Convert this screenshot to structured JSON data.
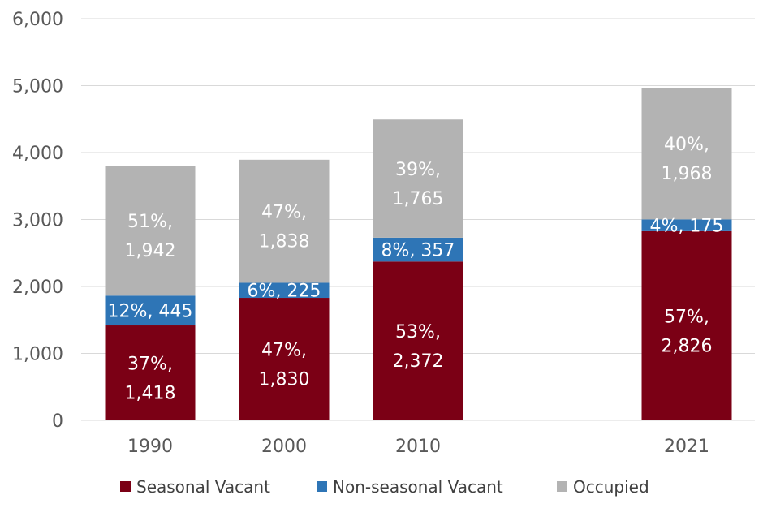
{
  "chart_data": {
    "type": "bar",
    "stacked": true,
    "title": "",
    "xlabel": "",
    "ylabel": "",
    "ylim": [
      0,
      6000
    ],
    "yticks": [
      0,
      1000,
      2000,
      3000,
      4000,
      5000,
      6000
    ],
    "ytick_labels": [
      "0",
      "1,000",
      "2,000",
      "3,000",
      "4,000",
      "5,000",
      "6,000"
    ],
    "grid": true,
    "legend_position": "bottom",
    "categories": [
      "1990",
      "2000",
      "2010",
      "2021"
    ],
    "series": [
      {
        "name": "Seasonal Vacant",
        "color": "#7b0015",
        "values": [
          1418,
          1830,
          2372,
          2826
        ],
        "labels": [
          "37%, 1,418",
          "47%, 1,830",
          "53%, 2,372",
          "57%, 2,826"
        ]
      },
      {
        "name": "Non-seasonal Vacant",
        "color": "#2e75b6",
        "values": [
          445,
          225,
          357,
          175
        ],
        "labels": [
          "12%, 445",
          "6%, 225",
          "8%, 357",
          "4%, 175"
        ]
      },
      {
        "name": "Occupied",
        "color": "#b3b3b3",
        "values": [
          1942,
          1838,
          1765,
          1968
        ],
        "labels": [
          "51%, 1,942",
          "47%, 1,838",
          "39%, 1,765",
          "40%, 1,968"
        ]
      }
    ]
  }
}
